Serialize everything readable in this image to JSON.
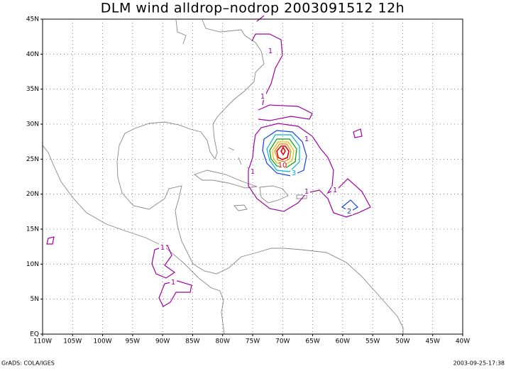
{
  "title": "DLM wind alldrop–nodrop 2003091512 12h",
  "y_labels": [
    "EQ",
    "5N",
    "10N",
    "15N",
    "20N",
    "25N",
    "30N",
    "35N",
    "40N",
    "45N"
  ],
  "x_labels": [
    "110W",
    "105W",
    "100W",
    "95W",
    "90W",
    "85W",
    "80W",
    "75W",
    "70W",
    "65W",
    "60W",
    "55W",
    "50W",
    "45W",
    "40W"
  ],
  "contour_labels": [
    "1",
    "1",
    "1",
    "1",
    "1",
    "1",
    "1",
    "1",
    "2",
    "3",
    "10"
  ],
  "footer_left": "GrADS: COLA/IGES",
  "footer_right": "2003-09-25-17:38"
}
